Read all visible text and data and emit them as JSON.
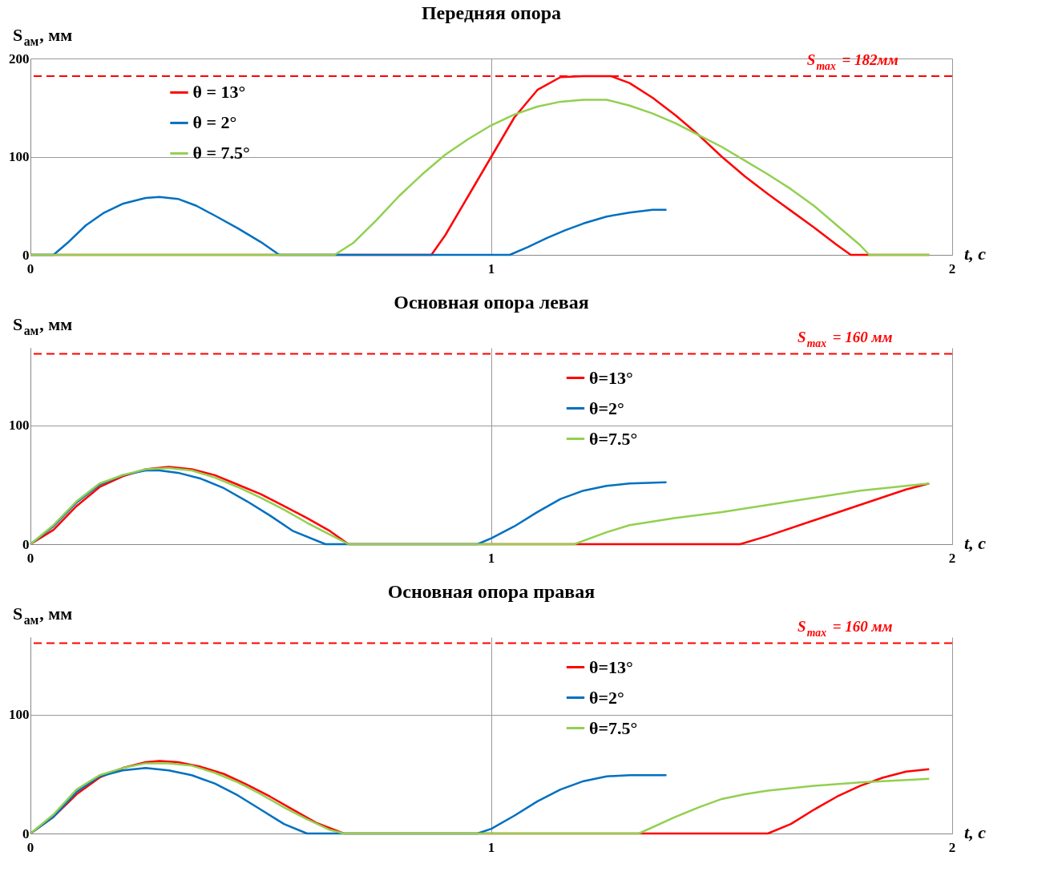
{
  "chart_data": [
    {
      "type": "line",
      "title": "Передняя опора",
      "xlabel": "t, с",
      "ylabel": "S$_{ам}$, мм",
      "xlim": [
        0,
        2
      ],
      "xticks": [
        0,
        1,
        2
      ],
      "ylim": [
        0,
        200
      ],
      "yticks": [
        0,
        100,
        200
      ],
      "grid": true,
      "legend": "top left",
      "line_style": "solid",
      "marker": "none",
      "ref_lines": [
        {
          "axis": "y",
          "value": 182,
          "label": "S$_{max}$ = 182мм",
          "color": "#ff0000",
          "line_style": "dashed"
        }
      ],
      "series": [
        {
          "name": "θ = 13°",
          "color": "#ff0000",
          "x": [
            0,
            0.87,
            0.9,
            0.95,
            1.0,
            1.05,
            1.1,
            1.15,
            1.2,
            1.26,
            1.3,
            1.35,
            1.4,
            1.45,
            1.5,
            1.55,
            1.6,
            1.65,
            1.7,
            1.75,
            1.78,
            1.95
          ],
          "values": [
            0,
            0,
            20,
            60,
            100,
            140,
            168,
            181,
            182,
            182,
            175,
            160,
            142,
            122,
            100,
            80,
            62,
            45,
            28,
            10,
            0,
            0
          ]
        },
        {
          "name": "θ = 2°",
          "color": "#0070c0",
          "x": [
            0,
            0.05,
            0.08,
            0.12,
            0.16,
            0.2,
            0.25,
            0.28,
            0.32,
            0.36,
            0.4,
            0.45,
            0.5,
            0.54,
            1.04,
            1.08,
            1.12,
            1.16,
            1.2,
            1.25,
            1.3,
            1.35,
            1.38
          ],
          "values": [
            0,
            0,
            12,
            30,
            43,
            52,
            58,
            59,
            57,
            50,
            40,
            27,
            13,
            0,
            0,
            8,
            17,
            25,
            32,
            39,
            43,
            46,
            46
          ]
        },
        {
          "name": "θ = 7.5°",
          "color": "#92d050",
          "x": [
            0,
            0.66,
            0.7,
            0.75,
            0.8,
            0.85,
            0.9,
            0.95,
            1.0,
            1.05,
            1.1,
            1.15,
            1.2,
            1.25,
            1.3,
            1.35,
            1.4,
            1.45,
            1.5,
            1.55,
            1.6,
            1.65,
            1.7,
            1.75,
            1.8,
            1.82,
            1.95
          ],
          "values": [
            0,
            0,
            12,
            35,
            60,
            82,
            102,
            118,
            132,
            143,
            151,
            156,
            158,
            158,
            152,
            144,
            134,
            122,
            110,
            96,
            82,
            67,
            50,
            30,
            10,
            0,
            0
          ]
        }
      ]
    },
    {
      "type": "line",
      "title": "Основная опора левая",
      "xlabel": "t, с",
      "ylabel": "S$_{ам}$, мм",
      "xlim": [
        0,
        2
      ],
      "xticks": [
        0,
        1,
        2
      ],
      "ylim": [
        0,
        165
      ],
      "yticks": [
        0,
        100
      ],
      "grid": true,
      "legend": "top",
      "line_style": "solid",
      "marker": "none",
      "ref_lines": [
        {
          "axis": "y",
          "value": 160,
          "label": "S$_{max}$ = 160 мм",
          "color": "#ff0000",
          "line_style": "dashed"
        }
      ],
      "series": [
        {
          "name": "θ=13°",
          "color": "#ff0000",
          "x": [
            0,
            0.05,
            0.1,
            0.15,
            0.2,
            0.25,
            0.3,
            0.35,
            0.4,
            0.45,
            0.5,
            0.55,
            0.6,
            0.65,
            0.69,
            1.54,
            1.6,
            1.7,
            1.8,
            1.9,
            1.95
          ],
          "values": [
            0,
            12,
            32,
            48,
            57,
            63,
            65,
            63,
            58,
            50,
            42,
            32,
            22,
            11,
            0,
            0,
            7,
            20,
            33,
            46,
            51
          ]
        },
        {
          "name": "θ=2°",
          "color": "#0070c0",
          "x": [
            0,
            0.05,
            0.1,
            0.15,
            0.2,
            0.25,
            0.28,
            0.32,
            0.37,
            0.42,
            0.47,
            0.52,
            0.57,
            0.64,
            0.97,
            1.0,
            1.05,
            1.1,
            1.15,
            1.2,
            1.25,
            1.3,
            1.38
          ],
          "values": [
            0,
            15,
            35,
            50,
            58,
            62,
            62,
            60,
            55,
            47,
            36,
            24,
            11,
            0,
            0,
            5,
            15,
            27,
            38,
            45,
            49,
            51,
            52
          ]
        },
        {
          "name": "θ=7.5°",
          "color": "#92d050",
          "x": [
            0,
            0.05,
            0.1,
            0.15,
            0.2,
            0.25,
            0.3,
            0.35,
            0.4,
            0.45,
            0.5,
            0.55,
            0.6,
            0.65,
            0.69,
            1.18,
            1.25,
            1.3,
            1.4,
            1.5,
            1.6,
            1.7,
            1.8,
            1.9,
            1.95
          ],
          "values": [
            0,
            16,
            36,
            51,
            58,
            63,
            64,
            62,
            56,
            48,
            39,
            29,
            18,
            8,
            0,
            0,
            10,
            16,
            22,
            27,
            33,
            39,
            45,
            49,
            51
          ]
        }
      ]
    },
    {
      "type": "line",
      "title": "Основная опора правая",
      "xlabel": "t, с",
      "ylabel": "S$_{ам}$, мм",
      "xlim": [
        0,
        2
      ],
      "xticks": [
        0,
        1,
        2
      ],
      "ylim": [
        0,
        165
      ],
      "yticks": [
        0,
        100
      ],
      "grid": true,
      "legend": "top",
      "line_style": "solid",
      "marker": "none",
      "ref_lines": [
        {
          "axis": "y",
          "value": 160,
          "label": "S$_{max}$ = 160 мм",
          "color": "#ff0000",
          "line_style": "dashed"
        }
      ],
      "series": [
        {
          "name": "θ=13°",
          "color": "#ff0000",
          "x": [
            0,
            0.05,
            0.1,
            0.15,
            0.2,
            0.25,
            0.28,
            0.32,
            0.37,
            0.42,
            0.47,
            0.52,
            0.57,
            0.62,
            0.68,
            1.6,
            1.65,
            1.7,
            1.75,
            1.8,
            1.85,
            1.9,
            1.95
          ],
          "values": [
            0,
            14,
            33,
            47,
            55,
            60,
            61,
            60,
            56,
            50,
            41,
            31,
            20,
            9,
            0,
            0,
            8,
            20,
            31,
            40,
            47,
            52,
            54
          ]
        },
        {
          "name": "θ=2°",
          "color": "#0070c0",
          "x": [
            0,
            0.05,
            0.1,
            0.15,
            0.2,
            0.25,
            0.3,
            0.35,
            0.4,
            0.45,
            0.5,
            0.55,
            0.6,
            0.97,
            1.0,
            1.05,
            1.1,
            1.15,
            1.2,
            1.25,
            1.3,
            1.38
          ],
          "values": [
            0,
            14,
            35,
            48,
            53,
            55,
            53,
            49,
            42,
            32,
            20,
            8,
            0,
            0,
            4,
            15,
            27,
            37,
            44,
            48,
            49,
            49
          ]
        },
        {
          "name": "θ=7.5°",
          "color": "#92d050",
          "x": [
            0,
            0.05,
            0.1,
            0.15,
            0.2,
            0.25,
            0.3,
            0.35,
            0.4,
            0.45,
            0.5,
            0.55,
            0.6,
            0.65,
            0.68,
            1.32,
            1.4,
            1.45,
            1.5,
            1.55,
            1.6,
            1.7,
            1.8,
            1.9,
            1.95
          ],
          "values": [
            0,
            16,
            37,
            49,
            55,
            59,
            59,
            57,
            51,
            43,
            33,
            22,
            12,
            3,
            0,
            0,
            14,
            22,
            29,
            33,
            36,
            40,
            43,
            45,
            46
          ]
        }
      ]
    }
  ]
}
